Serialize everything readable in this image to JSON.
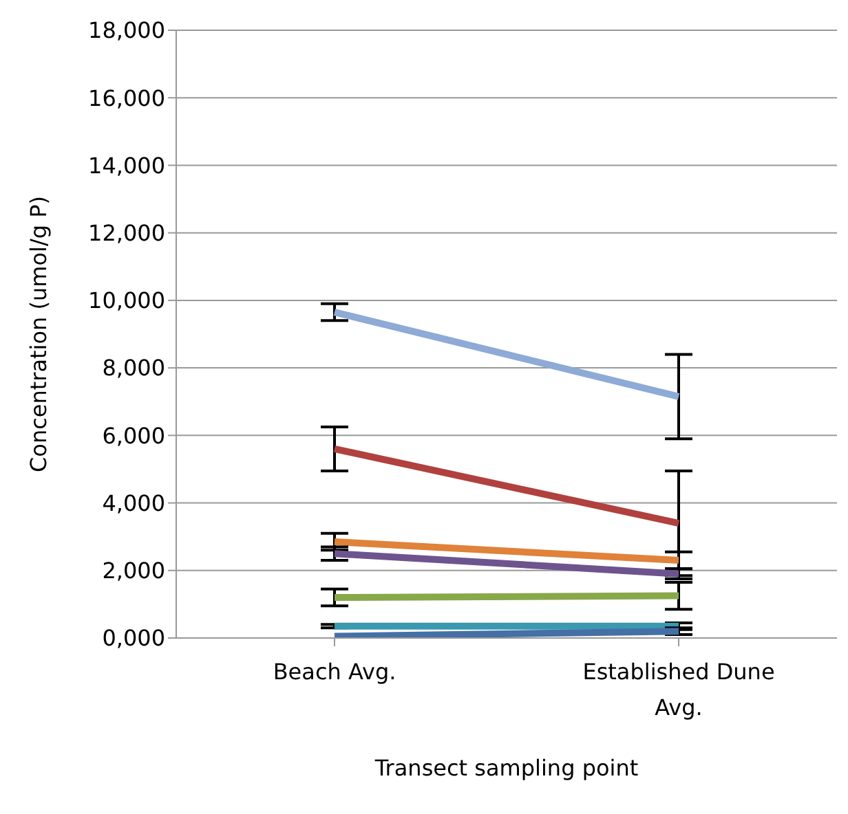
{
  "chart_data": {
    "type": "line",
    "xlabel": "Transect sampling point",
    "ylabel": "Concentration (umol/g P)",
    "categories": [
      "Beach Avg.",
      "Established Dune Avg."
    ],
    "ylim": [
      0,
      18000
    ],
    "yticks": [
      {
        "value": 0,
        "label": "0,000"
      },
      {
        "value": 2000,
        "label": "2,000"
      },
      {
        "value": 4000,
        "label": "4,000"
      },
      {
        "value": 6000,
        "label": "6,000"
      },
      {
        "value": 8000,
        "label": "8,000"
      },
      {
        "value": 10000,
        "label": "10,000"
      },
      {
        "value": 12000,
        "label": "12,000"
      },
      {
        "value": 14000,
        "label": "14,000"
      },
      {
        "value": 16000,
        "label": "16,000"
      },
      {
        "value": 18000,
        "label": "18,000"
      }
    ],
    "grid": "y",
    "legend": false,
    "marker": "none",
    "line_style": "solid",
    "series": [
      {
        "color": "#8eaad6",
        "values": [
          9650,
          7150
        ],
        "errors": [
          250,
          1250
        ]
      },
      {
        "color": "#b0413e",
        "values": [
          5600,
          3400
        ],
        "errors": [
          650,
          1550
        ]
      },
      {
        "color": "#e0823a",
        "values": [
          2850,
          2300
        ],
        "errors": [
          250,
          250
        ]
      },
      {
        "color": "#6e548f",
        "values": [
          2500,
          1900
        ],
        "errors": [
          200,
          150
        ]
      },
      {
        "color": "#89a84a",
        "values": [
          1200,
          1250
        ],
        "errors": [
          250,
          400
        ]
      },
      {
        "color": "#3a98b0",
        "values": [
          350,
          350
        ],
        "errors": [
          50,
          100
        ]
      },
      {
        "color": "#4470a6",
        "values": [
          50,
          200
        ],
        "errors": [
          null,
          100
        ]
      }
    ]
  }
}
